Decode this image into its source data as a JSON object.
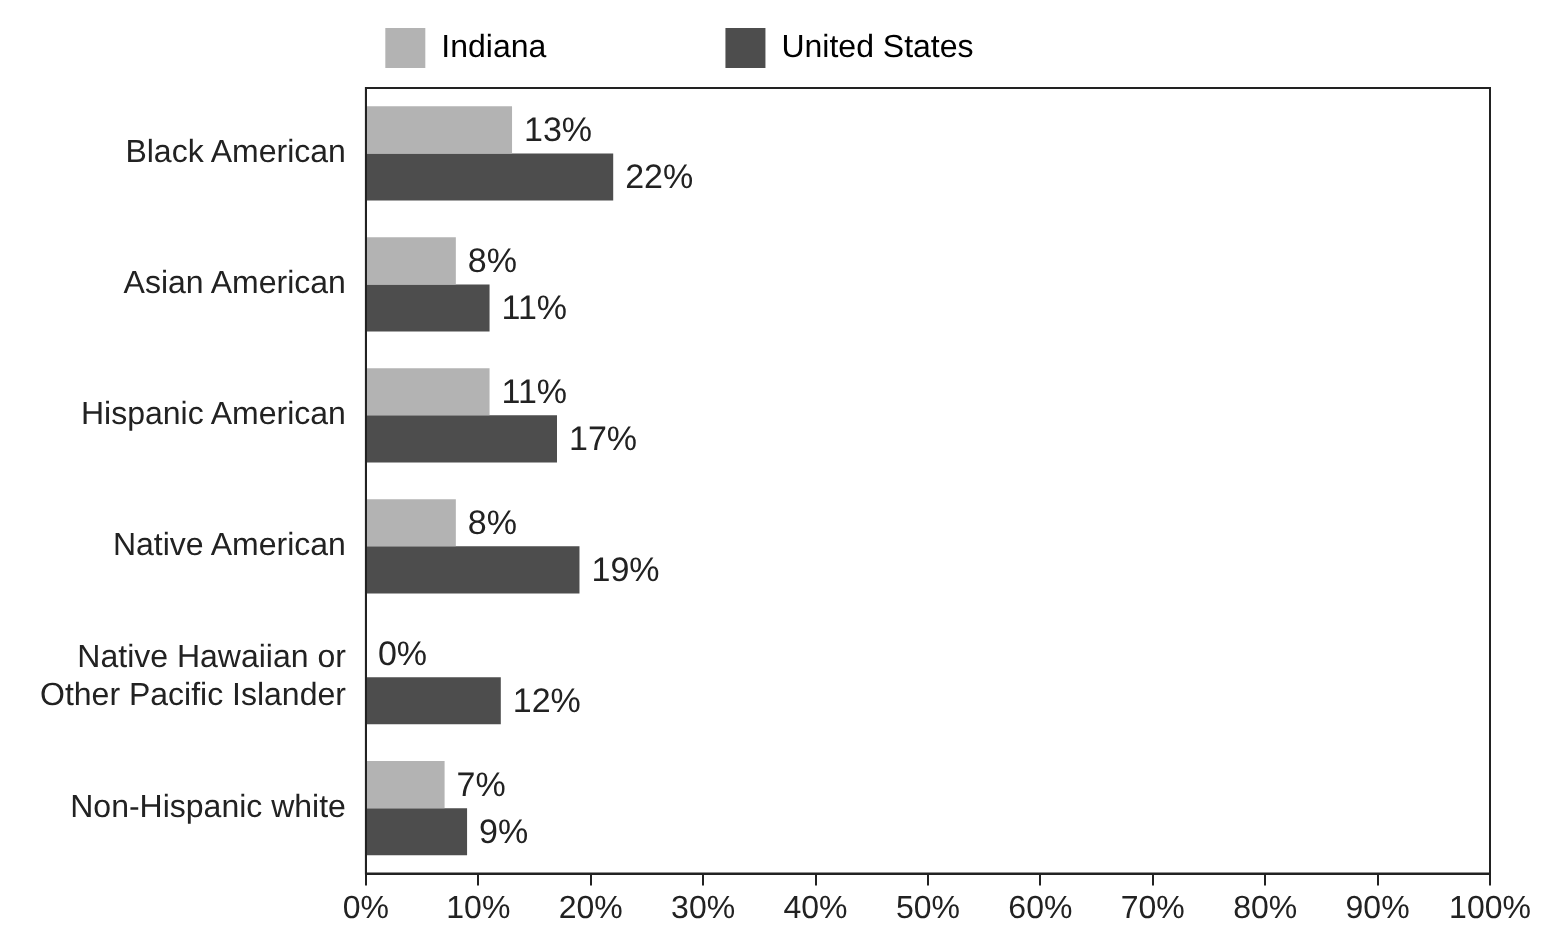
{
  "chart_data": {
    "type": "bar",
    "orientation": "horizontal",
    "legend": "top",
    "grid": false,
    "categories": [
      "Black American",
      "Asian American",
      "Hispanic American",
      "Native American",
      "Native Hawaiian or Other Pacific Islander",
      "Non-Hispanic white"
    ],
    "series": [
      {
        "name": "Indiana",
        "color": "#b3b3b3",
        "values": [
          13,
          8,
          11,
          8,
          0,
          7
        ],
        "value_labels": [
          "13%",
          "8%",
          "11%",
          "8%",
          "0%",
          "7%"
        ]
      },
      {
        "name": "United States",
        "color": "#4d4d4d",
        "values": [
          22,
          11,
          17,
          19,
          12,
          9
        ],
        "value_labels": [
          "22%",
          "11%",
          "17%",
          "19%",
          "12%",
          "9%"
        ]
      }
    ],
    "xlim": [
      0,
      100
    ],
    "xticks": [
      {
        "value": 0,
        "label": "0%"
      },
      {
        "value": 10,
        "label": "10%"
      },
      {
        "value": 20,
        "label": "20%"
      },
      {
        "value": 30,
        "label": "30%"
      },
      {
        "value": 40,
        "label": "40%"
      },
      {
        "value": 50,
        "label": "50%"
      },
      {
        "value": 60,
        "label": "60%"
      },
      {
        "value": 70,
        "label": "70%"
      },
      {
        "value": 80,
        "label": "80%"
      },
      {
        "value": 90,
        "label": "90%"
      },
      {
        "value": 100,
        "label": "100%"
      }
    ]
  }
}
